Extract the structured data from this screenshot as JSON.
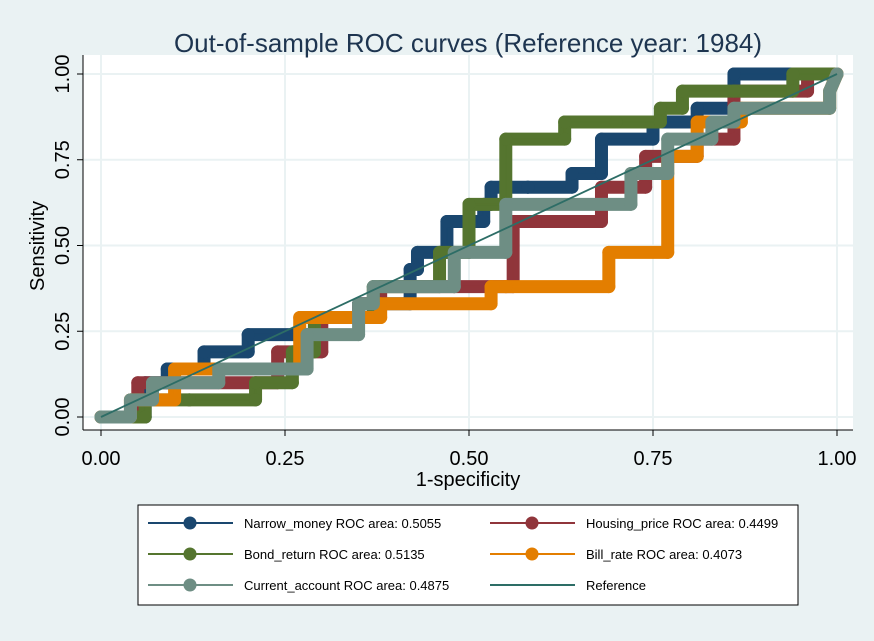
{
  "chart_data": {
    "type": "line",
    "title": "Out-of-sample ROC curves (Reference year: 1984)",
    "xlabel": "1-specificity",
    "ylabel": "Sensitivity",
    "xlim": [
      0,
      1
    ],
    "ylim": [
      0,
      1
    ],
    "x_ticks": [
      "0.00",
      "0.25",
      "0.50",
      "0.75",
      "1.00"
    ],
    "y_ticks": [
      "0.00",
      "0.25",
      "0.50",
      "0.75",
      "1.00"
    ],
    "grid": true,
    "legend_position": "bottom",
    "series": [
      {
        "name": "Narrow_money ROC area: 0.5055",
        "color": "#1a476f",
        "x": [
          0.0,
          0.06,
          0.06,
          0.09,
          0.09,
          0.14,
          0.14,
          0.2,
          0.2,
          0.29,
          0.29,
          0.35,
          0.35,
          0.42,
          0.42,
          0.43,
          0.43,
          0.47,
          0.47,
          0.52,
          0.52,
          0.53,
          0.53,
          0.58,
          0.58,
          0.64,
          0.64,
          0.68,
          0.68,
          0.75,
          0.75,
          0.81,
          0.81,
          0.86,
          0.86,
          0.94,
          0.94,
          1.0
        ],
        "y": [
          0.0,
          0.0,
          0.1,
          0.1,
          0.14,
          0.14,
          0.19,
          0.19,
          0.24,
          0.24,
          0.29,
          0.29,
          0.33,
          0.33,
          0.43,
          0.43,
          0.48,
          0.48,
          0.57,
          0.57,
          0.62,
          0.62,
          0.67,
          0.67,
          0.67,
          0.67,
          0.71,
          0.71,
          0.81,
          0.81,
          0.86,
          0.86,
          0.9,
          0.9,
          1.0,
          1.0,
          1.0,
          1.0
        ]
      },
      {
        "name": "Housing_price ROC area: 0.4499",
        "color": "#90353b",
        "x": [
          0.0,
          0.05,
          0.05,
          0.1,
          0.1,
          0.24,
          0.24,
          0.3,
          0.3,
          0.35,
          0.35,
          0.38,
          0.38,
          0.48,
          0.48,
          0.56,
          0.56,
          0.59,
          0.59,
          0.68,
          0.68,
          0.74,
          0.74,
          0.81,
          0.81,
          0.86,
          0.86,
          0.96,
          0.96,
          1.0
        ],
        "y": [
          0.0,
          0.0,
          0.1,
          0.1,
          0.1,
          0.1,
          0.19,
          0.19,
          0.29,
          0.29,
          0.33,
          0.33,
          0.38,
          0.38,
          0.38,
          0.38,
          0.57,
          0.57,
          0.57,
          0.57,
          0.67,
          0.67,
          0.76,
          0.76,
          0.81,
          0.81,
          0.95,
          0.95,
          1.0,
          1.0
        ]
      },
      {
        "name": "Bond_return ROC area: 0.5135",
        "color": "#55752f",
        "x": [
          0.0,
          0.06,
          0.06,
          0.12,
          0.12,
          0.21,
          0.21,
          0.26,
          0.26,
          0.29,
          0.29,
          0.37,
          0.37,
          0.46,
          0.46,
          0.5,
          0.5,
          0.55,
          0.55,
          0.63,
          0.63,
          0.7,
          0.7,
          0.76,
          0.76,
          0.79,
          0.79,
          0.86,
          0.86,
          0.94,
          0.94,
          1.0
        ],
        "y": [
          0.0,
          0.0,
          0.05,
          0.05,
          0.05,
          0.05,
          0.1,
          0.1,
          0.19,
          0.19,
          0.29,
          0.29,
          0.38,
          0.38,
          0.48,
          0.48,
          0.62,
          0.62,
          0.81,
          0.81,
          0.86,
          0.86,
          0.86,
          0.86,
          0.9,
          0.9,
          0.95,
          0.95,
          0.95,
          0.95,
          1.0,
          1.0
        ]
      },
      {
        "name": "Bill_rate ROC area: 0.4073",
        "color": "#e37e00",
        "x": [
          0.0,
          0.04,
          0.04,
          0.1,
          0.1,
          0.17,
          0.17,
          0.27,
          0.27,
          0.34,
          0.34,
          0.38,
          0.38,
          0.53,
          0.53,
          0.55,
          0.55,
          0.69,
          0.69,
          0.77,
          0.77,
          0.81,
          0.81,
          0.87,
          0.87,
          0.99,
          0.99,
          1.0
        ],
        "y": [
          0.0,
          0.0,
          0.05,
          0.05,
          0.14,
          0.14,
          0.14,
          0.14,
          0.29,
          0.29,
          0.29,
          0.29,
          0.33,
          0.33,
          0.38,
          0.38,
          0.38,
          0.38,
          0.48,
          0.48,
          0.76,
          0.76,
          0.86,
          0.86,
          0.9,
          0.9,
          0.95,
          1.0
        ]
      },
      {
        "name": "Current_account ROC area: 0.4875",
        "color": "#6e8e84",
        "x": [
          0.0,
          0.04,
          0.04,
          0.07,
          0.07,
          0.16,
          0.16,
          0.28,
          0.28,
          0.35,
          0.35,
          0.37,
          0.37,
          0.48,
          0.48,
          0.55,
          0.55,
          0.72,
          0.72,
          0.77,
          0.77,
          0.83,
          0.83,
          0.86,
          0.86,
          0.99,
          0.99,
          1.0
        ],
        "y": [
          0.0,
          0.0,
          0.05,
          0.05,
          0.1,
          0.1,
          0.14,
          0.14,
          0.24,
          0.24,
          0.33,
          0.33,
          0.38,
          0.38,
          0.48,
          0.48,
          0.62,
          0.62,
          0.71,
          0.71,
          0.81,
          0.81,
          0.86,
          0.86,
          0.9,
          0.9,
          0.95,
          1.0
        ]
      }
    ],
    "reference": {
      "name": "Reference",
      "color": "#2d6d66",
      "x": [
        0,
        1
      ],
      "y": [
        0,
        1
      ]
    }
  }
}
